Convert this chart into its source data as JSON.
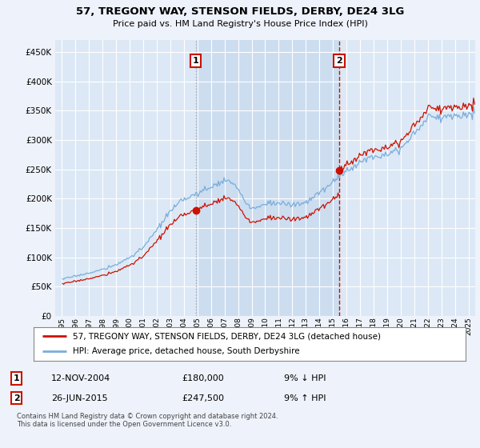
{
  "title": "57, TREGONY WAY, STENSON FIELDS, DERBY, DE24 3LG",
  "subtitle": "Price paid vs. HM Land Registry's House Price Index (HPI)",
  "legend_entry1": "57, TREGONY WAY, STENSON FIELDS, DERBY, DE24 3LG (detached house)",
  "legend_entry2": "HPI: Average price, detached house, South Derbyshire",
  "annotation1_date": "12-NOV-2004",
  "annotation1_price": "£180,000",
  "annotation1_hpi": "9% ↓ HPI",
  "annotation2_date": "26-JUN-2015",
  "annotation2_price": "£247,500",
  "annotation2_hpi": "9% ↑ HPI",
  "footer": "Contains HM Land Registry data © Crown copyright and database right 2024.\nThis data is licensed under the Open Government Licence v3.0.",
  "background_color": "#eef2fa",
  "plot_bg_color": "#dce8f5",
  "shaded_bg_color": "#ccddf0",
  "sale1_price": 180000,
  "sale2_price": 247500,
  "hpi_color": "#7aaddb",
  "price_color": "#cc1100",
  "vline1_color": "#aaaaaa",
  "vline2_color": "#cc1100",
  "grid_color": "#ffffff",
  "ylim_min": 0,
  "ylim_max": 470000,
  "xlim_min": 1994.5,
  "xlim_max": 2025.5,
  "ytick_values": [
    0,
    50000,
    100000,
    150000,
    200000,
    250000,
    300000,
    350000,
    400000,
    450000
  ],
  "ytick_labels": [
    "£0",
    "£50K",
    "£100K",
    "£150K",
    "£200K",
    "£250K",
    "£300K",
    "£350K",
    "£400K",
    "£450K"
  ],
  "xtick_years": [
    1995,
    1996,
    1997,
    1998,
    1999,
    2000,
    2001,
    2002,
    2003,
    2004,
    2005,
    2006,
    2007,
    2008,
    2009,
    2010,
    2011,
    2012,
    2013,
    2014,
    2015,
    2016,
    2017,
    2018,
    2019,
    2020,
    2021,
    2022,
    2023,
    2024,
    2025
  ]
}
